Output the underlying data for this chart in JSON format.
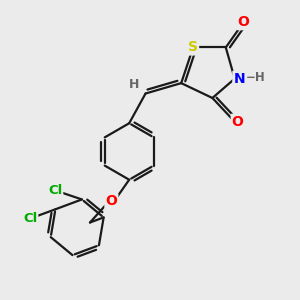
{
  "bg_color": "#ebebeb",
  "bond_color": "#1a1a1a",
  "bond_width": 1.6,
  "atom_colors": {
    "S": "#cccc00",
    "N": "#0000ff",
    "O": "#ff0000",
    "Cl": "#00aa00",
    "H_label": "#666666",
    "C": "#1a1a1a"
  }
}
